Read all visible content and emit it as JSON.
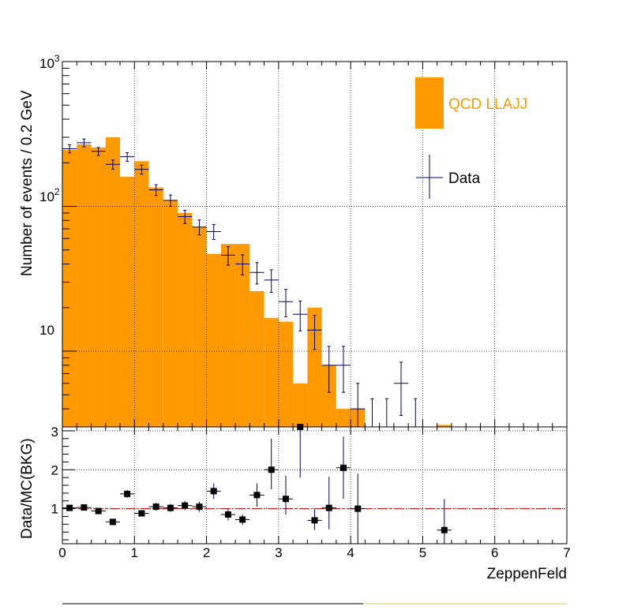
{
  "colors": {
    "mc": "#ff9900",
    "data": "#000066",
    "ratio_line": "#cc0000",
    "grid": "#000000"
  },
  "legend": {
    "mc_label": "QCD LLAJJ",
    "data_label": "Data"
  },
  "chart_data": [
    {
      "type": "bar",
      "title": "",
      "xlabel": "",
      "ylabel": "Number of events / 0.2 GeV",
      "log_y": true,
      "xlim": [
        0,
        7
      ],
      "ylim": [
        3,
        1000
      ],
      "grid": true,
      "legend_position": "top-right",
      "y_tick_labels": [
        "10",
        "10^2",
        "10^3"
      ],
      "bin_width": 0.2,
      "series": [
        {
          "name": "QCD LLAJJ",
          "kind": "histogram",
          "x": [
            0.1,
            0.3,
            0.5,
            0.7,
            0.9,
            1.1,
            1.3,
            1.5,
            1.7,
            1.9,
            2.1,
            2.3,
            2.5,
            2.7,
            2.9,
            3.1,
            3.3,
            3.5,
            3.7,
            3.9,
            4.1,
            5.3
          ],
          "values": [
            245,
            268,
            255,
            300,
            160,
            205,
            135,
            110,
            90,
            72,
            47,
            55,
            55,
            26,
            17,
            16,
            6,
            20,
            8,
            4,
            4,
            3.1
          ]
        },
        {
          "name": "Data",
          "kind": "points",
          "x": [
            0.1,
            0.3,
            0.5,
            0.7,
            0.9,
            1.1,
            1.3,
            1.5,
            1.7,
            1.9,
            2.1,
            2.3,
            2.5,
            2.7,
            2.9,
            3.1,
            3.3,
            3.5,
            3.7,
            3.9,
            4.1,
            4.3,
            4.5,
            4.7,
            4.9
          ],
          "values": [
            250,
            275,
            240,
            195,
            220,
            180,
            130,
            110,
            85,
            72,
            67,
            46,
            40,
            35,
            31,
            22,
            18,
            14,
            8,
            8,
            4,
            3,
            3,
            6,
            3
          ],
          "err_low": [
            16,
            17,
            15,
            14,
            15,
            13,
            11,
            10,
            9,
            8.5,
            8,
            6.7,
            6.3,
            5.9,
            5.5,
            4.7,
            4.2,
            3.7,
            2.8,
            2.8,
            2,
            1.7,
            1.7,
            2.4,
            1.7
          ],
          "err_high": [
            16,
            17,
            15,
            14,
            15,
            13,
            11,
            10,
            9,
            8.5,
            8,
            6.7,
            6.3,
            5.9,
            5.5,
            4.7,
            4.2,
            3.7,
            2.8,
            2.8,
            2,
            1.7,
            1.7,
            2.4,
            1.7
          ]
        }
      ]
    },
    {
      "type": "scatter",
      "title": "",
      "xlabel": "ZeppenFeld",
      "ylabel": "Data/MC(BKG)",
      "xlim": [
        0,
        7
      ],
      "ylim": [
        0.1,
        3.1
      ],
      "grid": true,
      "x_tick_labels": [
        "0",
        "1",
        "2",
        "3",
        "4",
        "5",
        "6",
        "7"
      ],
      "y_tick_labels": [
        "1",
        "2",
        "3"
      ],
      "reference_line": 1,
      "series": [
        {
          "name": "",
          "x": [
            0.1,
            0.3,
            0.5,
            0.7,
            0.9,
            1.1,
            1.3,
            1.5,
            1.7,
            1.9,
            2.1,
            2.3,
            2.5,
            2.7,
            2.9,
            3.1,
            3.3,
            3.5,
            3.7,
            3.9,
            4.1,
            5.3
          ],
          "values": [
            1.02,
            1.03,
            0.94,
            0.66,
            1.38,
            0.88,
            1.05,
            1.02,
            1.08,
            1.05,
            1.45,
            0.85,
            0.72,
            1.35,
            2.0,
            1.25,
            3.1,
            0.7,
            1.02,
            2.05,
            1.0,
            0.45
          ],
          "err_low": [
            0.07,
            0.07,
            0.06,
            0.06,
            0.1,
            0.07,
            0.1,
            0.1,
            0.12,
            0.13,
            0.2,
            0.15,
            0.13,
            0.3,
            0.5,
            0.4,
            1.3,
            0.25,
            0.55,
            0.8,
            1.0,
            0.45
          ],
          "err_high": [
            0.07,
            0.07,
            0.06,
            0.06,
            0.1,
            0.07,
            0.1,
            0.1,
            0.12,
            0.13,
            0.2,
            0.15,
            0.13,
            0.3,
            0.8,
            0.6,
            0.0,
            0.3,
            0.8,
            0.8,
            0.9,
            0.8
          ]
        }
      ]
    }
  ]
}
